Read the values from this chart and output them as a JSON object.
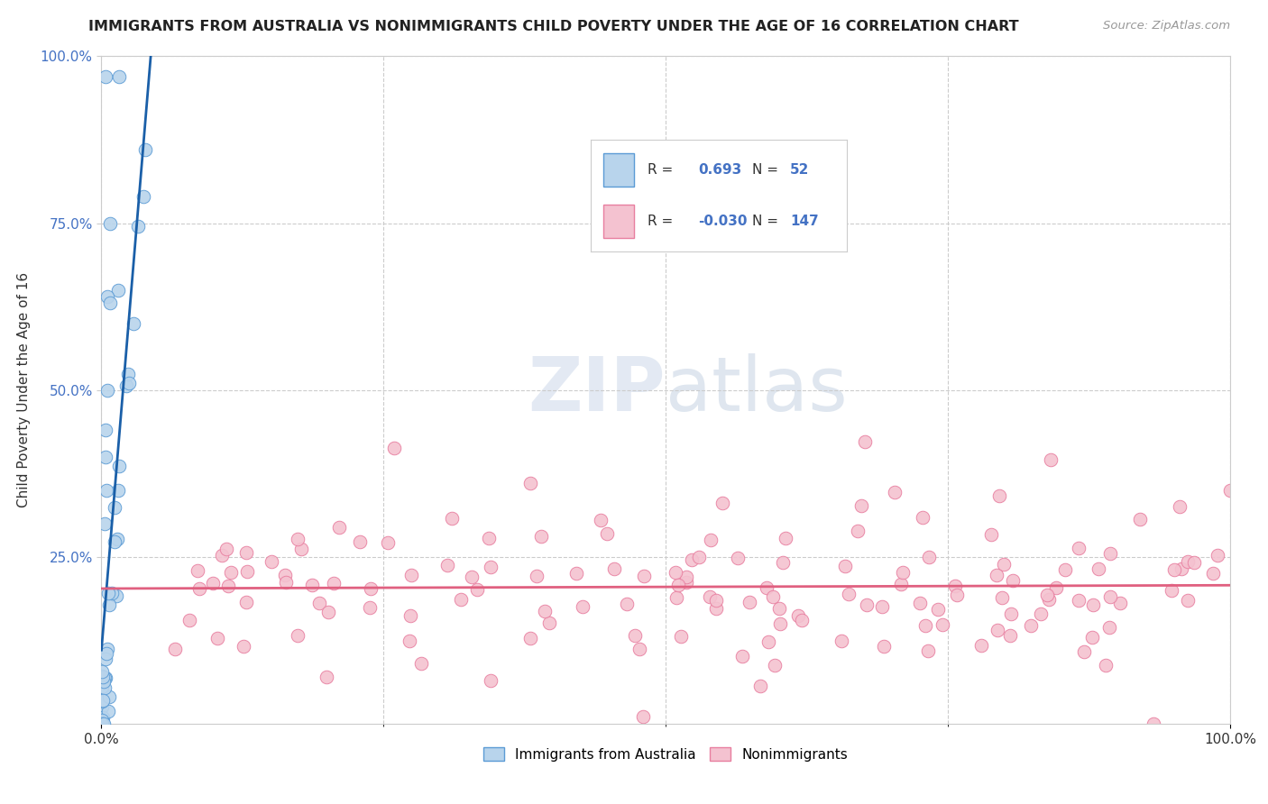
{
  "title": "IMMIGRANTS FROM AUSTRALIA VS NONIMMIGRANTS CHILD POVERTY UNDER THE AGE OF 16 CORRELATION CHART",
  "source": "Source: ZipAtlas.com",
  "ylabel": "Child Poverty Under the Age of 16",
  "xlim": [
    0,
    100
  ],
  "ylim": [
    0,
    100
  ],
  "xtick_positions": [
    0,
    100
  ],
  "xtick_labels": [
    "0.0%",
    "100.0%"
  ],
  "ytick_positions": [
    25,
    50,
    75,
    100
  ],
  "ytick_labels": [
    "25.0%",
    "50.0%",
    "75.0%",
    "100.0%"
  ],
  "blue_color": "#b8d4ec",
  "blue_edge_color": "#5b9bd5",
  "pink_color": "#f4c2d0",
  "pink_edge_color": "#e87fa0",
  "blue_line_color": "#1a5fa8",
  "pink_line_color": "#e06080",
  "legend_R1": "0.693",
  "legend_N1": "52",
  "legend_R2": "-0.030",
  "legend_N2": "147",
  "background_color": "#ffffff",
  "grid_color": "#cccccc",
  "title_fontsize": 11.5,
  "axis_label_fontsize": 11,
  "tick_fontsize": 11,
  "legend_fontsize": 11
}
